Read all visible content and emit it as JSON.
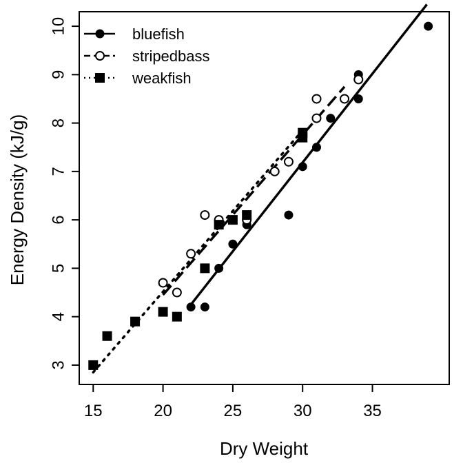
{
  "chart_data": {
    "type": "scatter",
    "title": "",
    "xlabel": "Dry Weight",
    "ylabel": "Energy Density (kJ/g)",
    "xlim": [
      14,
      40.5
    ],
    "ylim": [
      2.6,
      10.3
    ],
    "xticks": [
      15,
      20,
      25,
      30,
      35
    ],
    "yticks": [
      3,
      4,
      5,
      6,
      7,
      8,
      9,
      10
    ],
    "grid": false,
    "legend_position": "top-left",
    "series": [
      {
        "name": "bluefish",
        "marker": "filled-circle",
        "line_style": "solid",
        "points": [
          [
            22,
            4.2
          ],
          [
            23,
            4.2
          ],
          [
            24,
            5.0
          ],
          [
            25,
            5.5
          ],
          [
            26,
            5.9
          ],
          [
            29,
            6.1
          ],
          [
            30,
            7.1
          ],
          [
            31,
            7.5
          ],
          [
            32,
            8.1
          ],
          [
            34,
            8.5
          ],
          [
            34,
            9.0
          ],
          [
            39,
            10.0
          ]
        ],
        "fit_line": [
          [
            22,
            4.25
          ],
          [
            38.9,
            10.45
          ]
        ]
      },
      {
        "name": "stripedbass",
        "marker": "open-circle",
        "line_style": "dashed",
        "points": [
          [
            20,
            4.7
          ],
          [
            21,
            4.5
          ],
          [
            22,
            5.3
          ],
          [
            23,
            6.1
          ],
          [
            24,
            6.0
          ],
          [
            26,
            6.0
          ],
          [
            28,
            7.0
          ],
          [
            29,
            7.2
          ],
          [
            31,
            8.1
          ],
          [
            31,
            8.5
          ],
          [
            33,
            8.5
          ],
          [
            34,
            8.9
          ]
        ],
        "fit_line": [
          [
            20,
            4.45
          ],
          [
            33,
            8.75
          ]
        ]
      },
      {
        "name": "weakfish",
        "marker": "filled-square",
        "line_style": "dotted",
        "points": [
          [
            15,
            3.0
          ],
          [
            16,
            3.6
          ],
          [
            18,
            3.9
          ],
          [
            20,
            4.1
          ],
          [
            21,
            4.0
          ],
          [
            23,
            5.0
          ],
          [
            24,
            5.9
          ],
          [
            25,
            6.0
          ],
          [
            26,
            6.1
          ],
          [
            30,
            7.7
          ],
          [
            30,
            7.8
          ]
        ],
        "fit_line": [
          [
            15,
            2.85
          ],
          [
            30,
            7.85
          ]
        ]
      }
    ]
  }
}
